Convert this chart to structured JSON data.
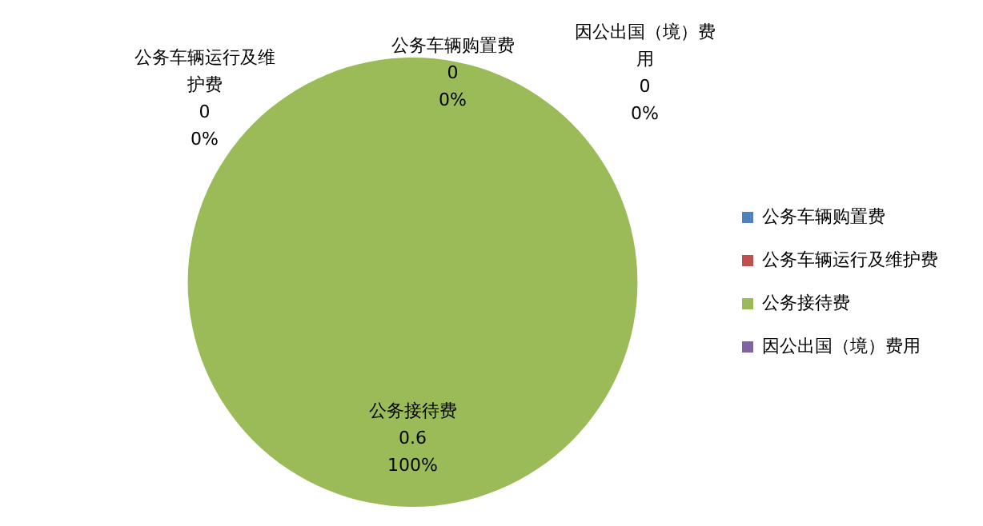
{
  "chart_data": {
    "type": "pie",
    "categories": [
      "公务车辆购置费",
      "公务车辆运行及维护费",
      "公务接待费",
      "因公出国（境）费用"
    ],
    "values": [
      0,
      0,
      0.6,
      0
    ],
    "colors": [
      "#4f81bd",
      "#c0504d",
      "#9bbb59",
      "#8064a2"
    ],
    "value_labels": [
      "0",
      "0",
      "0.6",
      "0"
    ],
    "annotations": [
      {
        "text": "0%",
        "x": "公务车辆购置费"
      },
      {
        "text": "0%",
        "x": "公务车辆运行及维护费"
      },
      {
        "text": "100%",
        "x": "公务接待费"
      },
      {
        "text": "0%",
        "x": "因公出国（境）费用"
      }
    ],
    "legend": "right"
  }
}
